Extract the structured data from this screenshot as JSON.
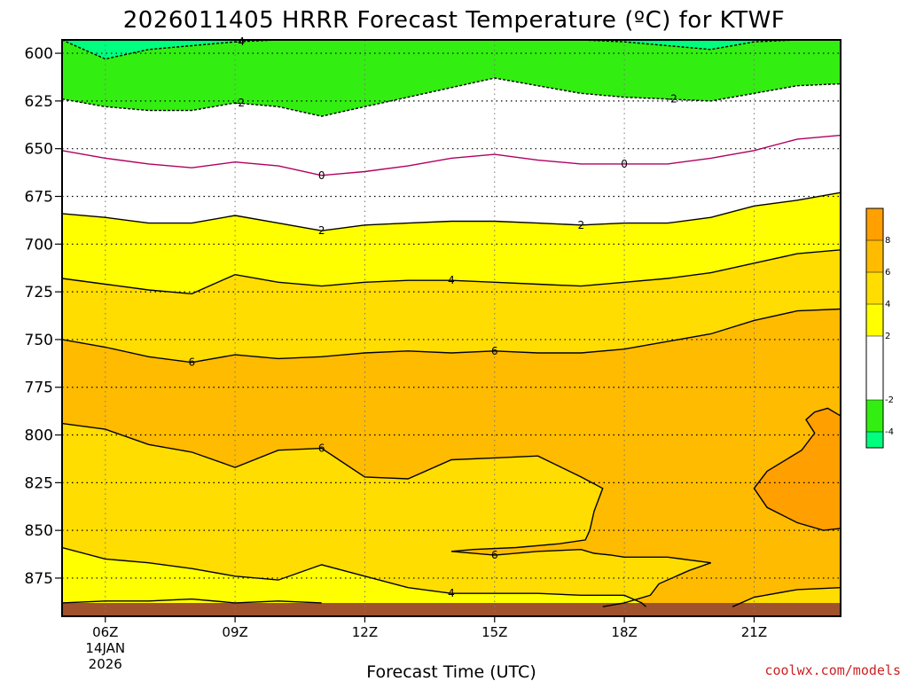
{
  "chart_data": {
    "type": "heatmap",
    "title": "2026011405 HRRR Forecast Temperature (ºC) for KTWF",
    "xlabel": "Forecast Time (UTC)",
    "ylabel": "",
    "credit": "coolwx.com/models",
    "x_range_hours": [
      5,
      23
    ],
    "y_range_hpa": [
      593,
      895
    ],
    "y_ticks": [
      "600",
      "625",
      "650",
      "675",
      "700",
      "725",
      "750",
      "775",
      "800",
      "825",
      "850",
      "875"
    ],
    "x_ticks": [
      {
        "hour": 6,
        "label": "06Z",
        "date": "14JAN",
        "year": "2026"
      },
      {
        "hour": 9,
        "label": "09Z"
      },
      {
        "hour": 12,
        "label": "12Z"
      },
      {
        "hour": 15,
        "label": "15Z"
      },
      {
        "hour": 18,
        "label": "18Z"
      },
      {
        "hour": 21,
        "label": "21Z"
      }
    ],
    "contours": [
      {
        "level": -4,
        "color": "#000000",
        "dashed": true,
        "points": [
          [
            5,
            593
          ],
          [
            5.5,
            598
          ],
          [
            6,
            603
          ],
          [
            7,
            598
          ],
          [
            8,
            596
          ],
          [
            9,
            594
          ],
          [
            10,
            593
          ],
          [
            11,
            593
          ],
          [
            12,
            593
          ],
          [
            13,
            593
          ],
          [
            15,
            593
          ],
          [
            17,
            593
          ],
          [
            18,
            594
          ],
          [
            19,
            596
          ],
          [
            20,
            598
          ],
          [
            21,
            594
          ],
          [
            22,
            593
          ]
        ]
      },
      {
        "level": -2,
        "color": "#000000",
        "dashed": true,
        "points": [
          [
            5,
            624
          ],
          [
            6,
            628
          ],
          [
            7,
            630
          ],
          [
            8,
            630
          ],
          [
            9,
            626
          ],
          [
            10,
            628
          ],
          [
            11,
            633
          ],
          [
            12,
            628
          ],
          [
            13,
            623
          ],
          [
            14,
            618
          ],
          [
            15,
            613
          ],
          [
            16,
            617
          ],
          [
            17,
            621
          ],
          [
            18,
            623
          ],
          [
            19,
            624
          ],
          [
            20,
            625
          ],
          [
            21,
            621
          ],
          [
            22,
            617
          ],
          [
            23,
            616
          ]
        ]
      },
      {
        "level": 0,
        "color": "#b00060",
        "dashed": false,
        "points": [
          [
            5,
            651
          ],
          [
            6,
            655
          ],
          [
            7,
            658
          ],
          [
            8,
            660
          ],
          [
            9,
            657
          ],
          [
            10,
            659
          ],
          [
            11,
            664
          ],
          [
            12,
            662
          ],
          [
            13,
            659
          ],
          [
            14,
            655
          ],
          [
            15,
            653
          ],
          [
            16,
            656
          ],
          [
            17,
            658
          ],
          [
            18,
            658
          ],
          [
            19,
            658
          ],
          [
            20,
            655
          ],
          [
            21,
            651
          ],
          [
            22,
            645
          ],
          [
            23,
            643
          ]
        ]
      },
      {
        "level": 2,
        "color": "#000000",
        "dashed": false,
        "points": [
          [
            5,
            684
          ],
          [
            6,
            686
          ],
          [
            7,
            689
          ],
          [
            8,
            689
          ],
          [
            9,
            685
          ],
          [
            10,
            689
          ],
          [
            11,
            693
          ],
          [
            12,
            690
          ],
          [
            13,
            689
          ],
          [
            14,
            688
          ],
          [
            15,
            688
          ],
          [
            16,
            689
          ],
          [
            17,
            690
          ],
          [
            18,
            689
          ],
          [
            19,
            689
          ],
          [
            20,
            686
          ],
          [
            21,
            680
          ],
          [
            22,
            677
          ],
          [
            23,
            673
          ]
        ]
      },
      {
        "level": 4,
        "color": "#000000",
        "dashed": false,
        "points": [
          [
            5,
            718
          ],
          [
            6,
            721
          ],
          [
            7,
            724
          ],
          [
            8,
            726
          ],
          [
            9,
            716
          ],
          [
            10,
            720
          ],
          [
            11,
            722
          ],
          [
            12,
            720
          ],
          [
            13,
            719
          ],
          [
            14,
            719
          ],
          [
            15,
            720
          ],
          [
            16,
            721
          ],
          [
            17,
            722
          ],
          [
            18,
            720
          ],
          [
            19,
            718
          ],
          [
            20,
            715
          ],
          [
            21,
            710
          ],
          [
            22,
            705
          ],
          [
            23,
            703
          ]
        ]
      },
      {
        "level": 6,
        "color": "#000000",
        "dashed": false,
        "points": [
          [
            5,
            750
          ],
          [
            6,
            754
          ],
          [
            7,
            759
          ],
          [
            8,
            762
          ],
          [
            9,
            758
          ],
          [
            10,
            760
          ],
          [
            11,
            759
          ],
          [
            12,
            757
          ],
          [
            13,
            756
          ],
          [
            14,
            757
          ],
          [
            15,
            756
          ],
          [
            16,
            757
          ],
          [
            17,
            757
          ],
          [
            18,
            755
          ],
          [
            19,
            751
          ],
          [
            20,
            747
          ],
          [
            21,
            740
          ],
          [
            22,
            735
          ],
          [
            23,
            734
          ]
        ]
      },
      {
        "level": 6,
        "color": "#000000",
        "dashed": false,
        "points": [
          [
            5,
            794
          ],
          [
            6,
            797
          ],
          [
            7,
            805
          ],
          [
            8,
            809
          ],
          [
            9,
            817
          ],
          [
            10,
            808
          ],
          [
            11,
            807
          ],
          [
            12,
            822
          ],
          [
            13,
            823
          ],
          [
            14,
            813
          ],
          [
            15,
            812
          ],
          [
            16,
            811
          ],
          [
            17,
            822
          ],
          [
            17.5,
            828
          ],
          [
            17.3,
            840
          ],
          [
            17.2,
            850
          ],
          [
            17.1,
            855
          ],
          [
            16.5,
            857
          ],
          [
            15.5,
            859
          ],
          [
            14.5,
            860
          ],
          [
            14,
            861
          ],
          [
            15,
            863
          ],
          [
            16,
            861
          ],
          [
            17,
            860
          ],
          [
            17.3,
            862
          ],
          [
            17.7,
            863
          ],
          [
            18,
            864
          ],
          [
            19,
            864
          ],
          [
            20,
            867
          ],
          [
            19.5,
            871
          ],
          [
            18.8,
            878
          ],
          [
            18.6,
            884
          ],
          [
            18,
            888
          ],
          [
            17.5,
            890
          ]
        ]
      },
      {
        "level": 4,
        "color": "#000000",
        "dashed": false,
        "points": [
          [
            5,
            859
          ],
          [
            6,
            865
          ],
          [
            7,
            867
          ],
          [
            8,
            870
          ],
          [
            9,
            874
          ],
          [
            10,
            876
          ],
          [
            11,
            868
          ],
          [
            12,
            874
          ],
          [
            13,
            880
          ],
          [
            14,
            883
          ],
          [
            15,
            883
          ],
          [
            16,
            883
          ],
          [
            17,
            884
          ],
          [
            18,
            884
          ],
          [
            18.4,
            888
          ],
          [
            18.5,
            890
          ]
        ]
      },
      {
        "level": 4,
        "color": "#000000",
        "dashed": false,
        "points": [
          [
            5,
            888
          ],
          [
            6,
            887
          ],
          [
            7,
            887
          ],
          [
            8,
            886
          ],
          [
            9,
            888
          ],
          [
            10,
            887
          ],
          [
            11,
            888
          ]
        ]
      },
      {
        "level": 8,
        "color": "#000000",
        "dashed": false,
        "points": [
          [
            22.4,
            788
          ],
          [
            22.7,
            786
          ],
          [
            23,
            790
          ],
          [
            23.4,
            793
          ],
          [
            23.4,
            848
          ],
          [
            22.6,
            850
          ],
          [
            22,
            846
          ],
          [
            21.3,
            838
          ],
          [
            21,
            828
          ],
          [
            21.3,
            819
          ],
          [
            22.1,
            808
          ],
          [
            22.4,
            799
          ],
          [
            22.2,
            792
          ],
          [
            22.4,
            788
          ]
        ]
      },
      {
        "level": 4,
        "color": "#000000",
        "dashed": false,
        "points": [
          [
            20.5,
            890
          ],
          [
            21,
            885
          ],
          [
            22,
            881
          ],
          [
            23,
            880
          ],
          [
            23.4,
            880
          ]
        ]
      }
    ],
    "contour_labels": [
      {
        "text": "-4",
        "x": 9.1,
        "y": 594
      },
      {
        "text": "-2",
        "x": 9.1,
        "y": 626
      },
      {
        "text": "-2",
        "x": 19.1,
        "y": 624
      },
      {
        "text": "0",
        "x": 11.0,
        "y": 664
      },
      {
        "text": "0",
        "x": 18.0,
        "y": 658
      },
      {
        "text": "2",
        "x": 11.0,
        "y": 693
      },
      {
        "text": "2",
        "x": 17.0,
        "y": 690
      },
      {
        "text": "4",
        "x": 14.0,
        "y": 719
      },
      {
        "text": "6",
        "x": 8.0,
        "y": 762
      },
      {
        "text": "6",
        "x": 15.0,
        "y": 756
      },
      {
        "text": "6",
        "x": 11.0,
        "y": 807
      },
      {
        "text": "6",
        "x": 15.0,
        "y": 863
      },
      {
        "text": "4",
        "x": 14.0,
        "y": 883
      }
    ],
    "colorbar": [
      {
        "from": -5,
        "to": -4,
        "color": "#00ff7f"
      },
      {
        "from": -4,
        "to": -2,
        "color": "#33ee11"
      },
      {
        "from": -2,
        "to": 0,
        "color": "#ffffff"
      },
      {
        "from": 0,
        "to": 2,
        "color": "#ffffff"
      },
      {
        "from": 2,
        "to": 4,
        "color": "#ffff00"
      },
      {
        "from": 4,
        "to": 6,
        "color": "#ffdd00"
      },
      {
        "from": 6,
        "to": 8,
        "color": "#ffbb00"
      },
      {
        "from": 8,
        "to": 10,
        "color": "#ff9f00"
      }
    ],
    "colorbar_ticks": [
      "8",
      "6",
      "4",
      "2",
      "-2",
      "-4"
    ],
    "colors": {
      "minus4": "#00ff7f",
      "minus2": "#33ee11",
      "zero_to_two": "#ffffff",
      "two_to_four": "#ffff00",
      "four_to_six": "#ffdd00",
      "six_to_eight": "#ffbb00",
      "eight_plus": "#ff9f00",
      "ground": "#a0522d",
      "zero_line": "#b00060",
      "credit": "#cc2222"
    }
  }
}
